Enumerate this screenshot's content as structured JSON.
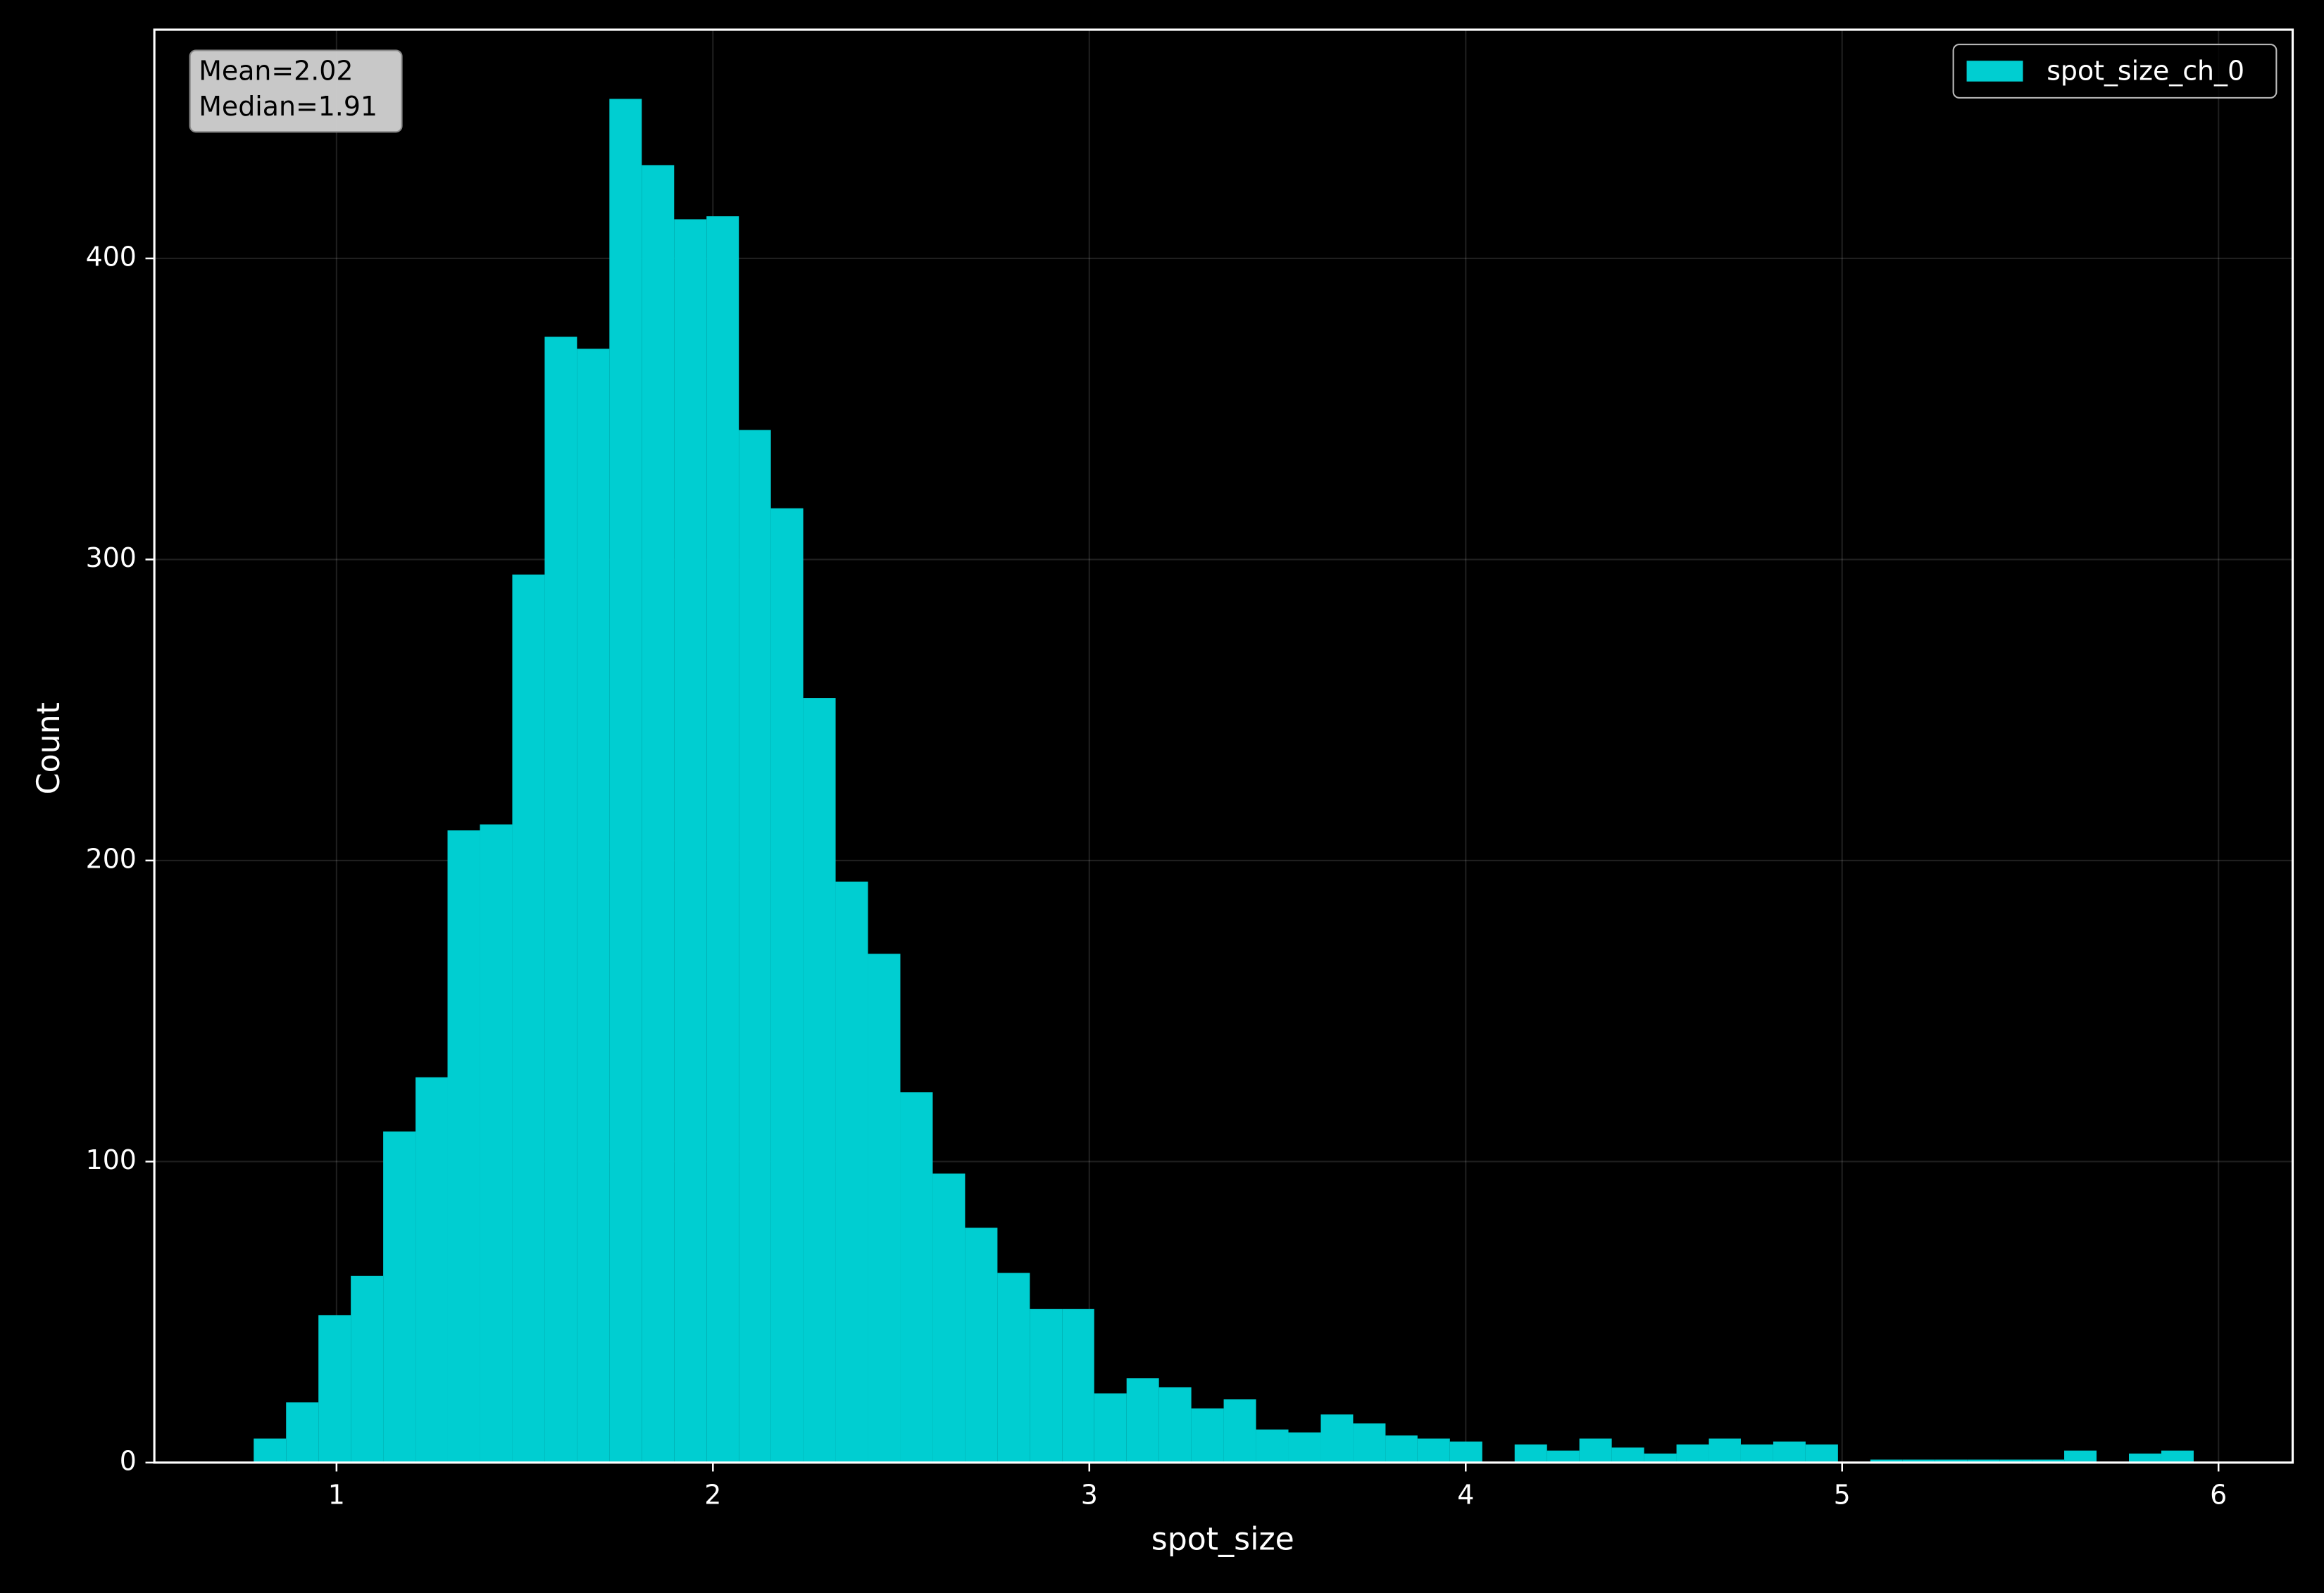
{
  "chart_data": {
    "type": "histogram",
    "x_label": "spot_size",
    "y_label": "Count",
    "annotations": [
      "Mean=2.02",
      "Median=1.91"
    ],
    "bins": [
      0.78,
      0.866,
      0.952,
      1.038,
      1.124,
      1.21,
      1.295,
      1.381,
      1.467,
      1.553,
      1.639,
      1.725,
      1.811,
      1.897,
      1.983,
      2.069,
      2.154,
      2.24,
      2.326,
      2.412,
      2.498,
      2.584,
      2.67,
      2.756,
      2.842,
      2.928,
      3.013,
      3.099,
      3.185,
      3.271,
      3.357,
      3.443,
      3.529,
      3.615,
      3.701,
      3.787,
      3.872,
      3.958,
      4.044,
      4.13,
      4.216,
      4.302,
      4.388,
      4.474,
      4.56,
      4.646,
      4.731,
      4.817,
      4.903,
      4.989,
      5.075,
      5.161,
      5.247,
      5.333,
      5.419,
      5.505,
      5.59,
      5.676,
      5.762,
      5.848,
      5.934
    ],
    "series": [
      {
        "name": "spot_size_ch_0",
        "color": "#00ced1",
        "values": [
          8,
          20,
          49,
          62,
          110,
          128,
          210,
          212,
          295,
          374,
          370,
          453,
          431,
          413,
          414,
          343,
          317,
          254,
          193,
          169,
          123,
          96,
          78,
          63,
          51,
          51,
          23,
          28,
          25,
          18,
          21,
          11,
          10,
          16,
          13,
          9,
          8,
          7,
          0,
          6,
          4,
          8,
          5,
          3,
          6,
          8,
          6,
          7,
          6,
          0,
          1,
          1,
          1,
          1,
          1,
          1,
          4,
          0,
          3,
          4
        ]
      }
    ],
    "xlim": [
      0.516,
      6.197
    ],
    "ylim": [
      0,
      476
    ],
    "xticks": [
      1,
      2,
      3,
      4,
      5,
      6
    ],
    "yticks": [
      0,
      100,
      200,
      300,
      400
    ],
    "grid": true,
    "legend": "upper right"
  }
}
